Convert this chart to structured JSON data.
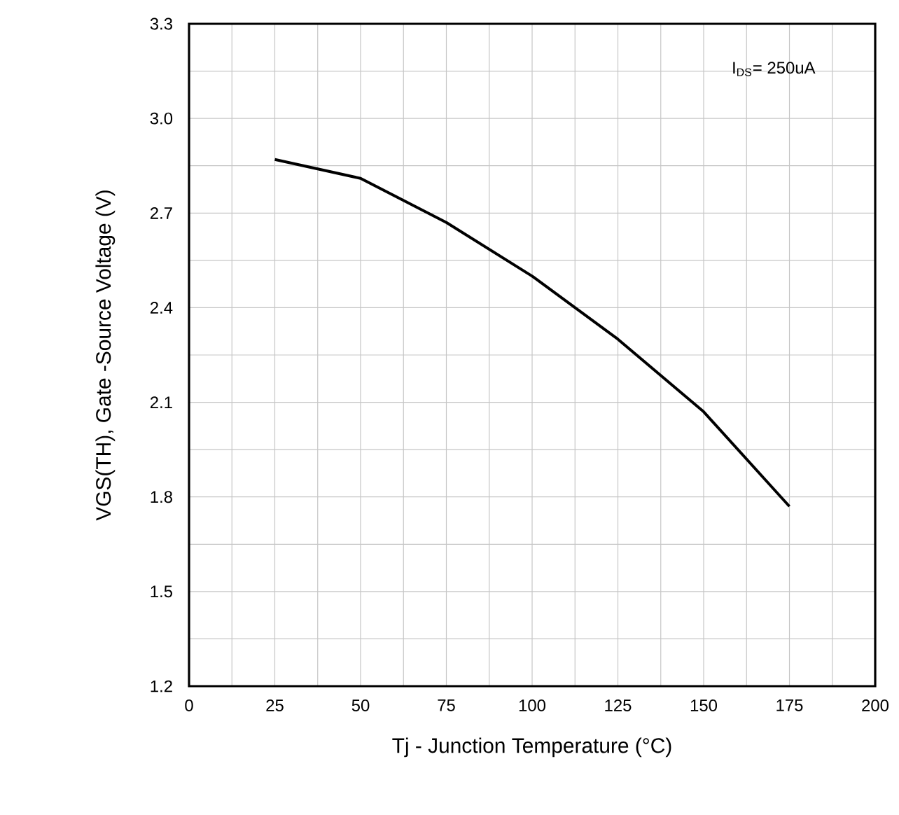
{
  "chart_data": {
    "type": "line",
    "xlabel": "Tj - Junction Temperature (°C)",
    "ylabel": "VGS(TH), Gate -Source Voltage (V)",
    "annotations": [
      "I$_{DS}$= 250uA"
    ],
    "x": [
      25,
      50,
      75,
      100,
      125,
      150,
      175
    ],
    "series": [
      {
        "color": "#000000",
        "values": [
          2.87,
          2.81,
          2.67,
          2.5,
          2.3,
          2.07,
          1.77
        ]
      }
    ],
    "xlim": [
      0,
      200
    ],
    "xticks": [
      0,
      25,
      50,
      75,
      100,
      125,
      150,
      175,
      200
    ],
    "ylim": [
      1.2,
      3.3
    ],
    "yticks": [
      1.2,
      1.5,
      1.8,
      2.1,
      2.4,
      2.7,
      {
        "value": 3,
        "label": "3.0"
      },
      3.3
    ],
    "grid": true,
    "marker": "none",
    "line_style": "solid"
  }
}
